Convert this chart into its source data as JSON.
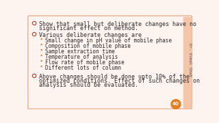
{
  "background_color": "#fdf3ef",
  "border_color": "#e8b89a",
  "text_color": "#2c2c2c",
  "bullet_color": "#c0392b",
  "sub_bullet_color": "#e67e22",
  "side_text": "Dr. Dimal Shah",
  "page_number": "40",
  "page_circle_color": "#e67e22",
  "bullet1_line1": "Show that small but deliberate changes have no",
  "bullet1_line2": "significant effect on method.",
  "bullet2_header": "Various deliberate changes are",
  "bullet2_items": [
    "Small change in pH value of mobile phase",
    "Composition of mobile phase",
    "Sample extraction time",
    "Temperature of analysis",
    "Flow rate of mobile phase",
    "Different lots of column"
  ],
  "bullet3_line1": "Above changes should be done upto 10% of the",
  "bullet3_line2": "optimized conditions. Effect of such changes on",
  "bullet3_line3": "analysis should be evaluated.",
  "font_family": "monospace",
  "main_fontsize": 6.0,
  "sub_fontsize": 5.5,
  "side_fontsize": 4.2
}
